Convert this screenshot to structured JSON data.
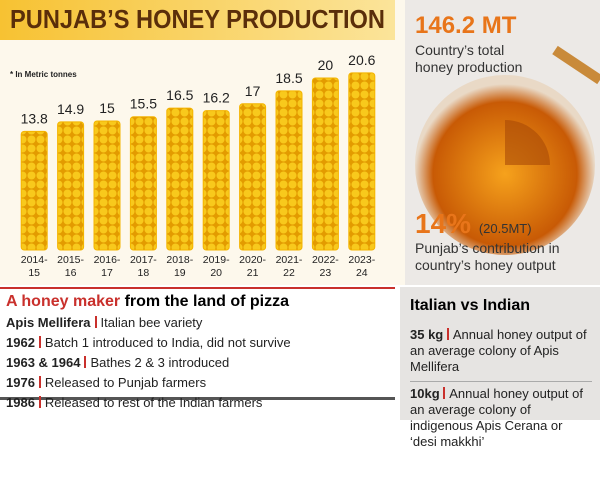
{
  "chart_data": {
    "type": "bar",
    "title": "PUNJAB’S HONEY PRODUCTION",
    "note": "* In Metric tonnes",
    "categories": [
      "2014-15",
      "2015-16",
      "2016-17",
      "2017-18",
      "2018-19",
      "2019-20",
      "2020-21",
      "2021-22",
      "2022-23",
      "2023-24"
    ],
    "values": [
      13.8,
      14.9,
      15,
      15.5,
      16.5,
      16.2,
      17,
      18.5,
      20,
      20.6
    ],
    "color": "#f4b400"
  },
  "highlights": {
    "total": {
      "value": "146.2 MT",
      "label": "Country’s total honey production"
    },
    "share": {
      "value": "14%",
      "detail": "(20.5MT)",
      "label": "Punjab’s contribution in country’s honey output"
    }
  },
  "timeline": {
    "title_emphasis": "A honey maker",
    "title_rest": "from the land of pizza",
    "rows": [
      {
        "key": "Apis Mellifera",
        "text": "Italian bee variety"
      },
      {
        "key": "1962",
        "text": "Batch 1 introduced to India, did not survive"
      },
      {
        "key": "1963 & 1964",
        "text": "Bathes 2 & 3 introduced"
      },
      {
        "key": "1976",
        "text": "Released to Punjab farmers"
      },
      {
        "key": "1986",
        "text": "Released to rest of the Indian farmers"
      }
    ]
  },
  "comparison": {
    "title": "Italian vs Indian",
    "items": [
      {
        "key": "35 kg",
        "text": "Annual honey output of an average colony of Apis Mellifera"
      },
      {
        "key": "10kg",
        "text": "Annual honey output of an average colony of indigenous Apis Cerana or ‘desi makkhi’"
      }
    ]
  }
}
